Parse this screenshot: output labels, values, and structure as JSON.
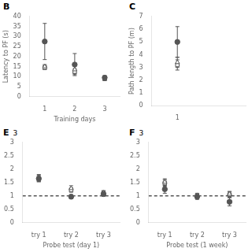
{
  "chart_data": [
    {
      "type": "scatter",
      "title": "B",
      "xlabel": "Training days",
      "ylabel": "Latency to PF (s)",
      "xlim": [
        0.5,
        3.5
      ],
      "xticks": [
        1,
        2,
        3
      ],
      "ylim": [
        0,
        40
      ],
      "yticks": [
        0,
        5,
        10,
        15,
        20,
        25,
        30,
        35,
        40
      ],
      "grid": false,
      "color": "#555555",
      "x": [
        1,
        2,
        3
      ],
      "series": [
        {
          "values": [
            27.5,
            16.0,
            9.5
          ],
          "errors": [
            9.0,
            5.5,
            1.0
          ],
          "marker": "circle"
        },
        {
          "values": [
            15.0,
            13.5,
            9.2
          ],
          "errors": [
            1.0,
            2.0,
            1.0
          ],
          "marker": "triangle-open"
        },
        {
          "values": [
            14.5,
            12.5,
            9.0
          ],
          "errors": [
            1.0,
            1.5,
            1.0
          ],
          "marker": "square-open"
        }
      ]
    },
    {
      "type": "scatter",
      "title": "C",
      "ylabel": "Path length to PF (m)",
      "xlim": [
        0.7,
        1.8
      ],
      "xticks": [
        1
      ],
      "ylim": [
        0,
        7
      ],
      "yticks": [
        0,
        1,
        2,
        3,
        4,
        5,
        6,
        7
      ],
      "grid": false,
      "color": "#555555",
      "x": [
        1
      ],
      "series": [
        {
          "values": [
            5.0
          ],
          "errors": [
            1.2
          ],
          "marker": "circle"
        },
        {
          "values": [
            3.4
          ],
          "errors": [
            0.4
          ],
          "marker": "triangle-open"
        },
        {
          "values": [
            3.2
          ],
          "errors": [
            0.4
          ],
          "marker": "square-open"
        }
      ]
    },
    {
      "type": "scatter",
      "title": "E",
      "subtitle": "3",
      "xlabel": "Probe test (day 1)",
      "xlim": [
        0.5,
        3.5
      ],
      "xticks": [
        {
          "value": 1,
          "label": "try 1"
        },
        {
          "value": 2,
          "label": "try 2"
        },
        {
          "value": 3,
          "label": "try 3"
        }
      ],
      "ylim": [
        0,
        3
      ],
      "yticks": [
        0,
        0.5,
        1,
        1.5,
        2,
        2.5,
        3
      ],
      "hline": 1.0,
      "grid": false,
      "color": "#555555",
      "x": [
        1,
        2,
        3
      ],
      "series": [
        {
          "values": [
            1.65,
            0.97,
            1.07
          ],
          "errors": [
            0.12,
            0.08,
            0.08
          ],
          "marker": "circle"
        },
        {
          "values": [
            1.68,
            1.28,
            1.12
          ],
          "errors": [
            0.12,
            0.1,
            0.08
          ],
          "marker": "triangle-open"
        },
        {
          "values": [
            1.63,
            1.22,
            1.1
          ],
          "errors": [
            0.1,
            0.08,
            0.08
          ],
          "marker": "square-open"
        }
      ]
    },
    {
      "type": "scatter",
      "title": "F",
      "subtitle": "3",
      "xlabel": "Probe test (1 week)",
      "xlim": [
        0.5,
        3.5
      ],
      "xticks": [
        {
          "value": 1,
          "label": "try 1"
        },
        {
          "value": 2,
          "label": "try 2"
        },
        {
          "value": 3,
          "label": "try 3"
        }
      ],
      "ylim": [
        0,
        3
      ],
      "yticks": [
        0,
        0.5,
        1,
        1.5,
        2,
        2.5,
        3
      ],
      "hline": 1.0,
      "grid": false,
      "color": "#555555",
      "x": [
        1,
        2,
        3
      ],
      "series": [
        {
          "values": [
            1.25,
            0.97,
            0.78
          ],
          "errors": [
            0.15,
            0.1,
            0.15
          ],
          "marker": "circle"
        },
        {
          "values": [
            1.52,
            1.02,
            1.07
          ],
          "errors": [
            0.12,
            0.08,
            0.1
          ],
          "marker": "triangle-open"
        },
        {
          "values": [
            1.48,
            0.98,
            1.05
          ],
          "errors": [
            0.12,
            0.08,
            0.1
          ],
          "marker": "square-open"
        }
      ]
    }
  ]
}
